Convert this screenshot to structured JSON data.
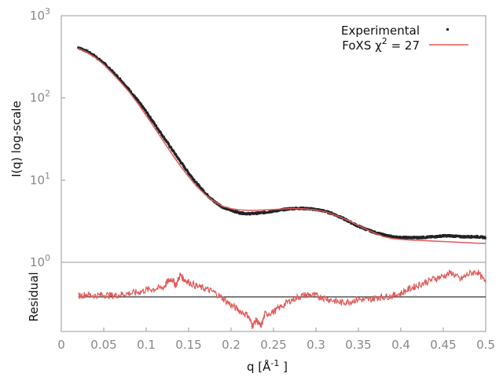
{
  "chart_data": [
    {
      "type": "scatter",
      "panel": "main",
      "ylabel": "I(q) log-scale",
      "yscale": "log",
      "ylim": [
        1,
        1000
      ],
      "xlim": [
        0,
        0.5
      ],
      "y_tick_labels": [
        {
          "base": "10",
          "exp": "0",
          "value": 1
        },
        {
          "base": "10",
          "exp": "1",
          "value": 10
        },
        {
          "base": "10",
          "exp": "2",
          "value": 100
        },
        {
          "base": "10",
          "exp": "3",
          "value": 1000
        }
      ],
      "legend": {
        "placement": "top-right",
        "entries": [
          {
            "text": "Experimental",
            "sup": "",
            "suffix": "",
            "color": "#222222",
            "marker": "point"
          },
          {
            "text": "FoXS χ",
            "sup": "2",
            "suffix": " = 27",
            "color": "#e05a5a",
            "marker": "line"
          }
        ]
      },
      "series": [
        {
          "name": "Experimental",
          "color": "#222222",
          "points": [
            [
              0.02,
              410
            ],
            [
              0.03,
              370
            ],
            [
              0.04,
              320
            ],
            [
              0.05,
              265
            ],
            [
              0.06,
              210
            ],
            [
              0.07,
              165
            ],
            [
              0.08,
              125
            ],
            [
              0.09,
              93
            ],
            [
              0.1,
              68
            ],
            [
              0.11,
              48
            ],
            [
              0.12,
              34
            ],
            [
              0.13,
              24
            ],
            [
              0.14,
              17
            ],
            [
              0.15,
              12.2
            ],
            [
              0.16,
              9.0
            ],
            [
              0.17,
              6.9
            ],
            [
              0.18,
              5.5
            ],
            [
              0.19,
              4.7
            ],
            [
              0.2,
              4.3
            ],
            [
              0.21,
              4.0
            ],
            [
              0.22,
              3.9
            ],
            [
              0.23,
              3.95
            ],
            [
              0.24,
              4.05
            ],
            [
              0.25,
              4.2
            ],
            [
              0.26,
              4.35
            ],
            [
              0.27,
              4.5
            ],
            [
              0.28,
              4.55
            ],
            [
              0.29,
              4.5
            ],
            [
              0.3,
              4.4
            ],
            [
              0.31,
              4.2
            ],
            [
              0.32,
              3.9
            ],
            [
              0.33,
              3.5
            ],
            [
              0.34,
              3.1
            ],
            [
              0.35,
              2.75
            ],
            [
              0.36,
              2.5
            ],
            [
              0.37,
              2.3
            ],
            [
              0.38,
              2.15
            ],
            [
              0.39,
              2.05
            ],
            [
              0.4,
              2.0
            ],
            [
              0.41,
              2.0
            ],
            [
              0.42,
              2.0
            ],
            [
              0.43,
              2.02
            ],
            [
              0.44,
              2.05
            ],
            [
              0.45,
              2.1
            ],
            [
              0.46,
              2.1
            ],
            [
              0.47,
              2.05
            ],
            [
              0.48,
              2.05
            ],
            [
              0.49,
              2.05
            ],
            [
              0.5,
              2.0
            ]
          ]
        },
        {
          "name": "FoXS χ2 = 27",
          "color": "#e05a5a",
          "points": [
            [
              0.02,
              400
            ],
            [
              0.03,
              360
            ],
            [
              0.04,
              310
            ],
            [
              0.05,
              255
            ],
            [
              0.06,
              200
            ],
            [
              0.07,
              155
            ],
            [
              0.08,
              118
            ],
            [
              0.09,
              86
            ],
            [
              0.1,
              61
            ],
            [
              0.11,
              43
            ],
            [
              0.12,
              30
            ],
            [
              0.13,
              21
            ],
            [
              0.14,
              15
            ],
            [
              0.15,
              11
            ],
            [
              0.16,
              8.3
            ],
            [
              0.17,
              6.6
            ],
            [
              0.18,
              5.5
            ],
            [
              0.19,
              4.8
            ],
            [
              0.2,
              4.5
            ],
            [
              0.21,
              4.35
            ],
            [
              0.22,
              4.3
            ],
            [
              0.23,
              4.3
            ],
            [
              0.24,
              4.35
            ],
            [
              0.25,
              4.4
            ],
            [
              0.26,
              4.45
            ],
            [
              0.27,
              4.5
            ],
            [
              0.28,
              4.5
            ],
            [
              0.29,
              4.45
            ],
            [
              0.3,
              4.35
            ],
            [
              0.31,
              4.15
            ],
            [
              0.32,
              3.85
            ],
            [
              0.33,
              3.5
            ],
            [
              0.34,
              3.15
            ],
            [
              0.35,
              2.8
            ],
            [
              0.36,
              2.5
            ],
            [
              0.37,
              2.25
            ],
            [
              0.38,
              2.05
            ],
            [
              0.39,
              1.95
            ],
            [
              0.4,
              1.9
            ],
            [
              0.41,
              1.87
            ],
            [
              0.42,
              1.85
            ],
            [
              0.43,
              1.83
            ],
            [
              0.44,
              1.81
            ],
            [
              0.45,
              1.79
            ],
            [
              0.46,
              1.77
            ],
            [
              0.47,
              1.75
            ],
            [
              0.48,
              1.73
            ],
            [
              0.49,
              1.71
            ],
            [
              0.5,
              1.7
            ]
          ]
        }
      ]
    },
    {
      "type": "line",
      "panel": "residual",
      "ylabel": "Residual",
      "xlim": [
        0,
        0.5
      ],
      "ylim": [
        -3,
        3
      ],
      "baseline": 0,
      "x_ticks": [
        0,
        0.05,
        0.1,
        0.15,
        0.2,
        0.25,
        0.3,
        0.35,
        0.4,
        0.45,
        0.5
      ],
      "x_tick_labels": [
        "0",
        "0.05",
        "0.1",
        "0.15",
        "0.2",
        "0.25",
        "0.3",
        "0.35",
        "0.4",
        "0.45",
        "0.5"
      ],
      "xlabel": {
        "text": "q [Å",
        "sup": "-1",
        "suffix": " ]"
      },
      "series": [
        {
          "name": "",
          "color": "#e05a5a",
          "points": [
            [
              0.02,
              0.1
            ],
            [
              0.03,
              0.2
            ],
            [
              0.04,
              0.1
            ],
            [
              0.05,
              0.2
            ],
            [
              0.06,
              0.1
            ],
            [
              0.07,
              0.2
            ],
            [
              0.08,
              0.3
            ],
            [
              0.09,
              0.4
            ],
            [
              0.1,
              0.6
            ],
            [
              0.11,
              0.7
            ],
            [
              0.12,
              0.8
            ],
            [
              0.125,
              1.3
            ],
            [
              0.13,
              1.6
            ],
            [
              0.135,
              1.0
            ],
            [
              0.14,
              1.9
            ],
            [
              0.145,
              1.5
            ],
            [
              0.15,
              1.3
            ],
            [
              0.16,
              0.9
            ],
            [
              0.17,
              0.7
            ],
            [
              0.18,
              0.4
            ],
            [
              0.19,
              -0.1
            ],
            [
              0.2,
              -0.7
            ],
            [
              0.21,
              -1.2
            ],
            [
              0.22,
              -1.6
            ],
            [
              0.225,
              -2.5
            ],
            [
              0.23,
              -2.0
            ],
            [
              0.235,
              -2.6
            ],
            [
              0.24,
              -1.5
            ],
            [
              0.25,
              -1.3
            ],
            [
              0.26,
              -0.8
            ],
            [
              0.27,
              -0.3
            ],
            [
              0.28,
              0
            ],
            [
              0.29,
              0.2
            ],
            [
              0.3,
              0.1
            ],
            [
              0.31,
              -0.1
            ],
            [
              0.32,
              -0.3
            ],
            [
              0.33,
              -0.5
            ],
            [
              0.34,
              -0.4
            ],
            [
              0.35,
              -0.2
            ],
            [
              0.36,
              -0.3
            ],
            [
              0.37,
              -0.1
            ],
            [
              0.38,
              0
            ],
            [
              0.39,
              0.1
            ],
            [
              0.4,
              0.3
            ],
            [
              0.41,
              0.7
            ],
            [
              0.42,
              1.0
            ],
            [
              0.43,
              1.3
            ],
            [
              0.44,
              1.6
            ],
            [
              0.45,
              1.8
            ],
            [
              0.46,
              2.1
            ],
            [
              0.47,
              1.5
            ],
            [
              0.48,
              2.0
            ],
            [
              0.49,
              2.2
            ],
            [
              0.5,
              1.2
            ]
          ]
        }
      ]
    }
  ]
}
